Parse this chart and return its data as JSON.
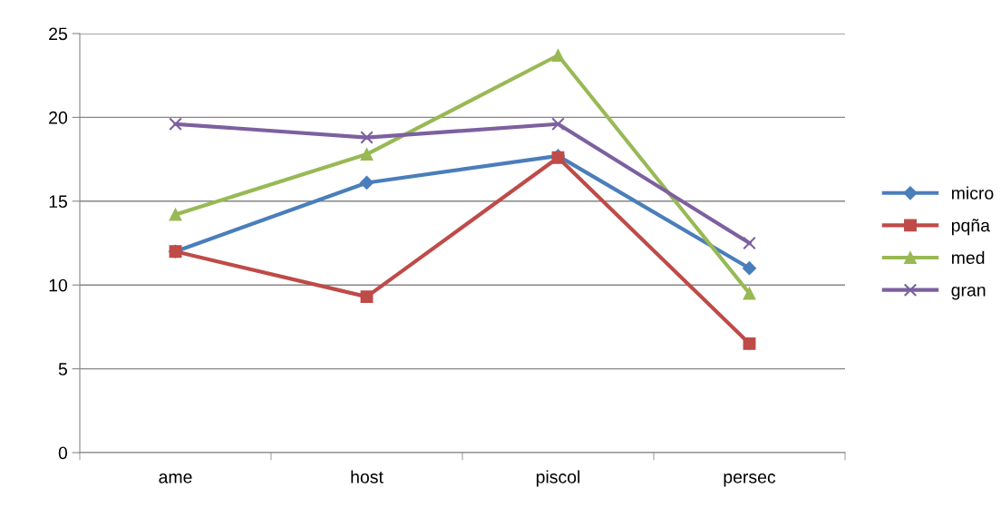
{
  "chart_data": {
    "type": "line",
    "categories": [
      "ame",
      "host",
      "piscol",
      "persec"
    ],
    "series": [
      {
        "name": "micro",
        "color": "#4a7ebb",
        "marker": "diamond",
        "values": [
          12,
          16.1,
          17.7,
          11
        ]
      },
      {
        "name": "pqña",
        "color": "#be4b48",
        "marker": "square",
        "values": [
          12,
          9.3,
          17.6,
          6.5
        ]
      },
      {
        "name": "med",
        "color": "#98b954",
        "marker": "triangle",
        "values": [
          14.2,
          17.8,
          23.7,
          9.5
        ]
      },
      {
        "name": "gran",
        "color": "#7d60a0",
        "marker": "cross",
        "values": [
          19.6,
          18.8,
          19.6,
          12.5
        ]
      }
    ],
    "ylim": [
      0,
      25
    ],
    "yticks": [
      0,
      5,
      10,
      15,
      20,
      25
    ],
    "grid": "y",
    "legend": "right",
    "line_style": "solid"
  }
}
